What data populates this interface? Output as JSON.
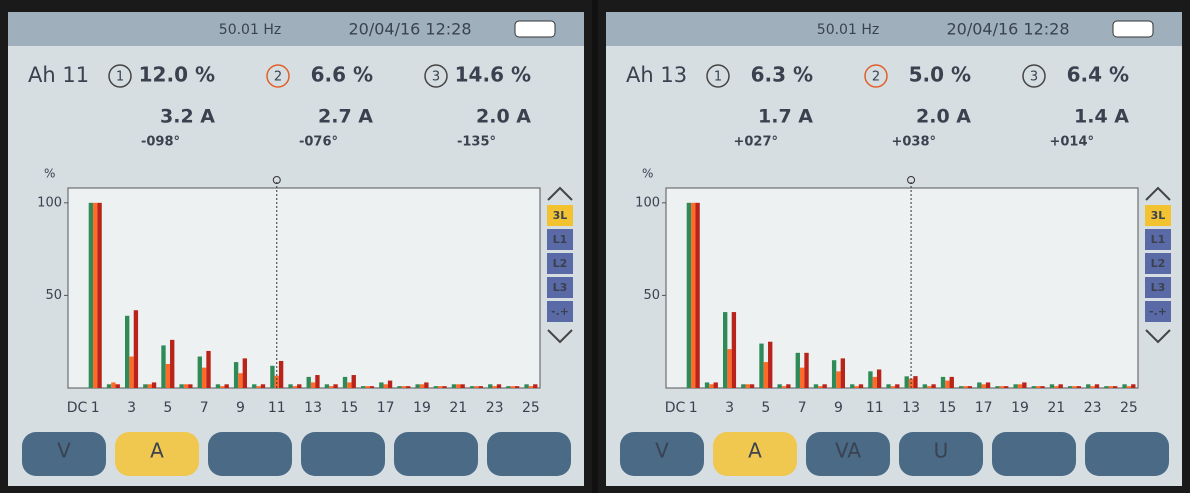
{
  "chart_data": [
    {
      "type": "bar",
      "frequency": "50.01 Hz",
      "datetime": "20/04/16 12:28",
      "harmonic_label": "Ah 11",
      "readings": [
        {
          "phase": "1",
          "percent": "12.0 %",
          "current": "3.2 A",
          "angle": "-098°"
        },
        {
          "phase": "2",
          "percent": "6.6 %",
          "current": "2.7 A",
          "angle": "-076°"
        },
        {
          "phase": "3",
          "percent": "14.6 %",
          "current": "2.0 A",
          "angle": "-135°"
        }
      ],
      "y_axis_label": "%",
      "categories": [
        "DC",
        "1",
        null,
        "3",
        null,
        "5",
        null,
        "7",
        null,
        "9",
        null,
        "11",
        null,
        "13",
        null,
        "15",
        null,
        "17",
        null,
        "19",
        null,
        "21",
        null,
        "23",
        null,
        "25"
      ],
      "series": [
        {
          "color": "#2e8b57",
          "values": [
            0,
            100,
            2,
            39,
            2,
            23,
            2,
            17,
            2,
            14,
            2,
            12,
            2,
            6,
            2,
            6,
            1,
            3,
            1,
            2,
            1,
            2,
            1,
            2,
            1,
            2
          ]
        },
        {
          "color": "#ff6a2a",
          "values": [
            0,
            100,
            3,
            17,
            2,
            13,
            2,
            11,
            1,
            8,
            1,
            6.6,
            1,
            3,
            1,
            3,
            1,
            2,
            1,
            2,
            1,
            2,
            1,
            1,
            1,
            1
          ]
        },
        {
          "color": "#b8241a",
          "values": [
            0,
            100,
            2,
            42,
            3,
            26,
            2,
            20,
            2,
            16,
            2,
            14.6,
            2,
            7,
            2,
            7,
            1,
            4,
            1,
            3,
            1,
            2,
            1,
            2,
            1,
            2
          ]
        }
      ],
      "ylim": [
        0,
        108
      ],
      "yticks": [
        50,
        100
      ],
      "cursor_index": 11,
      "side_buttons": [
        "3L",
        "L1",
        "L2",
        "L3",
        "-.+"
      ],
      "active_side_button_index": 0,
      "tabs": [
        "V",
        "A",
        null,
        null,
        null,
        null
      ],
      "active_tab_index": 1
    },
    {
      "type": "bar",
      "frequency": "50.01 Hz",
      "datetime": "20/04/16 12:28",
      "harmonic_label": "Ah 13",
      "readings": [
        {
          "phase": "1",
          "percent": "6.3 %",
          "current": "1.7 A",
          "angle": "+027°"
        },
        {
          "phase": "2",
          "percent": "5.0 %",
          "current": "2.0 A",
          "angle": "+038°"
        },
        {
          "phase": "3",
          "percent": "6.4 %",
          "current": "1.4 A",
          "angle": "+014°"
        }
      ],
      "y_axis_label": "%",
      "categories": [
        "DC",
        "1",
        null,
        "3",
        null,
        "5",
        null,
        "7",
        null,
        "9",
        null,
        "11",
        null,
        "13",
        null,
        "15",
        null,
        "17",
        null,
        "19",
        null,
        "21",
        null,
        "23",
        null,
        "25"
      ],
      "series": [
        {
          "color": "#2e8b57",
          "values": [
            0,
            100,
            3,
            41,
            2,
            24,
            2,
            19,
            2,
            15,
            2,
            9,
            2,
            6.3,
            2,
            6,
            1,
            3,
            1,
            2,
            1,
            2,
            1,
            2,
            1,
            2
          ]
        },
        {
          "color": "#ff6a2a",
          "values": [
            0,
            100,
            2,
            21,
            2,
            14,
            1,
            11,
            1,
            9,
            1,
            6,
            1,
            5.0,
            1,
            4,
            1,
            2,
            1,
            2,
            1,
            1,
            1,
            1,
            1,
            1
          ]
        },
        {
          "color": "#b8241a",
          "values": [
            0,
            100,
            3,
            41,
            2,
            25,
            2,
            19,
            2,
            16,
            2,
            10,
            2,
            6.4,
            2,
            6,
            1,
            3,
            1,
            3,
            1,
            2,
            1,
            2,
            1,
            2
          ]
        }
      ],
      "ylim": [
        0,
        108
      ],
      "yticks": [
        50,
        100
      ],
      "cursor_index": 13,
      "side_buttons": [
        "3L",
        "L1",
        "L2",
        "L3",
        "-.+"
      ],
      "active_side_button_index": 0,
      "tabs": [
        "V",
        "A",
        "VA",
        "U",
        null,
        null
      ],
      "active_tab_index": 1
    }
  ]
}
